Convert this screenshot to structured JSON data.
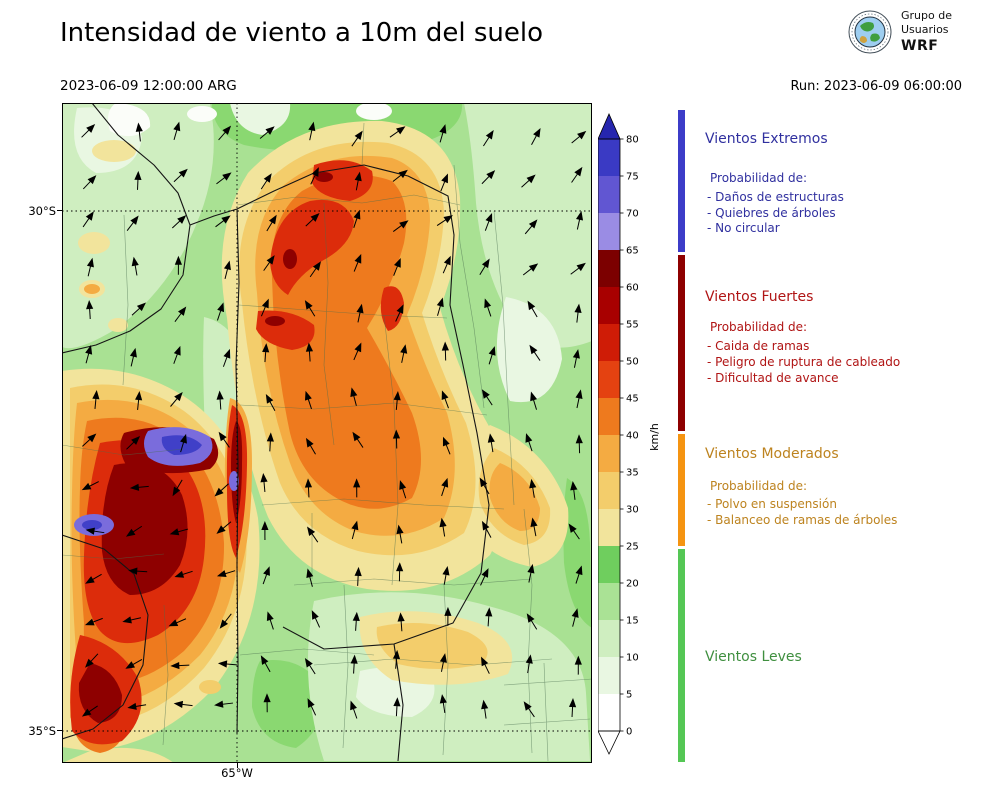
{
  "header": {
    "title": "Intensidad de viento a 10m del suelo",
    "valid_time": "2023-06-09 12:00:00 ARG",
    "run_time": "Run: 2023-06-09 06:00:00",
    "logo": {
      "line1": "Grupo de",
      "line2": "Usuarios",
      "line3": "WRF"
    }
  },
  "map": {
    "lat_labels": [
      "30°S",
      "35°S"
    ],
    "lon_labels": [
      "65°W"
    ]
  },
  "colorbar": {
    "unit": "km/h",
    "ticks": [
      0,
      5,
      10,
      15,
      20,
      25,
      30,
      35,
      40,
      45,
      50,
      55,
      60,
      65,
      70,
      75,
      80
    ],
    "colors": [
      "#ffffff",
      "#e9f7e2",
      "#cfeec0",
      "#aae295",
      "#6fce5e",
      "#f2e49c",
      "#f3cd6b",
      "#f4ab42",
      "#ee7a1e",
      "#e44211",
      "#cf1c06",
      "#a80000",
      "#7c0000",
      "#9a8ce4",
      "#6156d2",
      "#3a3ac4"
    ],
    "over_color": "#2626ae",
    "under_color": "#ffffff"
  },
  "legend": {
    "sections": [
      {
        "title": "Vientos Extremos",
        "text_color": "#30309f",
        "bar_color": "#3c3cc8",
        "prob_label": "Probabilidad de:",
        "items": [
          "- Daños de estructuras",
          "- Quiebres de árboles",
          "- No circular"
        ]
      },
      {
        "title": "Vientos Fuertes",
        "text_color": "#b01414",
        "bar_color": "#8e0000",
        "prob_label": "Probabilidad de:",
        "items": [
          "- Caida de ramas",
          "- Peligro de ruptura de cableado",
          "- Dificultad de avance"
        ]
      },
      {
        "title": "Vientos Moderados",
        "text_color": "#bd831f",
        "bar_color": "#f59411",
        "prob_label": "Probabilidad de:",
        "items": [
          "- Polvo en suspensión",
          "- Balanceo de ramas de árboles"
        ]
      },
      {
        "title": "Vientos Leves",
        "text_color": "#3f8f3f",
        "bar_color": "#55c755",
        "prob_label": "",
        "items": []
      }
    ]
  }
}
